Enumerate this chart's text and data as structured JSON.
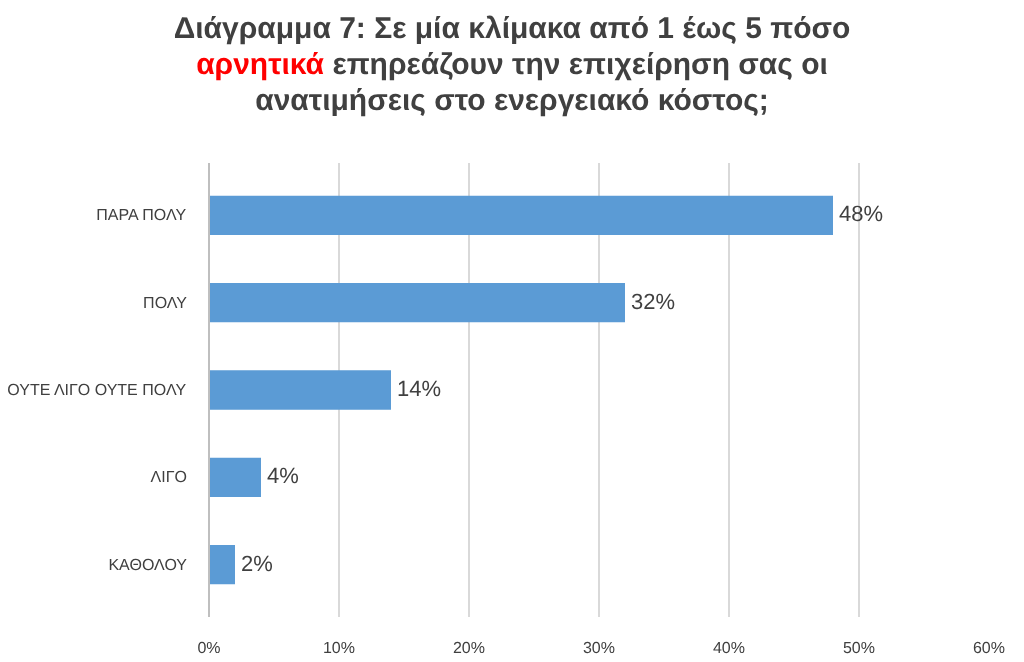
{
  "chart_data": {
    "type": "bar",
    "orientation": "horizontal",
    "title": "Διάγραμμα 7: Σε μία κλίμακα από 1 έως 5 πόσο\nαρνητικά επηρεάζουν την επιχείρηση σας οι\nανατιμήσεις στο ενεργειακό κόστος;",
    "categories": [
      "ΠΑΡΑ ΠΟΛΥ",
      "ΠΟΛΥ",
      "ΟΥΤΕ ΛΙΓΟ ΟΥΤΕ ΠΟΛΥ",
      "ΛΙΓΟ",
      "ΚΑΘΟΛΟΥ"
    ],
    "values": [
      48,
      32,
      14,
      4,
      2
    ],
    "value_labels": [
      "48%",
      "32%",
      "14%",
      "4%",
      "2%"
    ],
    "color": "#5b9bd5",
    "xlim": [
      0,
      60
    ],
    "xticks": [
      {
        "value": 0,
        "label": "0%"
      },
      {
        "value": 10,
        "label": "10%"
      },
      {
        "value": 20,
        "label": "20%"
      },
      {
        "value": 30,
        "label": "30%"
      },
      {
        "value": 40,
        "label": "40%"
      },
      {
        "value": 50,
        "label": "50%"
      },
      {
        "value": 60,
        "label": "60%"
      }
    ],
    "grid": "x"
  }
}
